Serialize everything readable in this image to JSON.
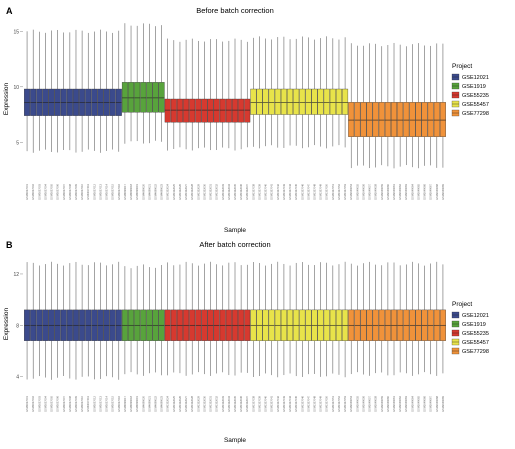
{
  "chart_data": [
    {
      "type": "box",
      "panel_label": "A",
      "title": "Before batch correction",
      "xlabel": "Sample",
      "ylabel": "Expression",
      "ylim": [
        1.6,
        16.2
      ],
      "yticks": [
        5,
        10,
        15
      ],
      "legend_title": "Project",
      "legend_position": "right",
      "series": [
        {
          "name": "GSE12021",
          "color": "#3b4a8c",
          "n": 16,
          "lower_whisker": 4.2,
          "q1": 7.4,
          "median": 8.6,
          "q3": 9.8,
          "upper_whisker": 15.0
        },
        {
          "name": "GSE1919",
          "color": "#58a33c",
          "n": 7,
          "lower_whisker": 5.0,
          "q1": 7.7,
          "median": 9.0,
          "q3": 10.4,
          "upper_whisker": 15.6
        },
        {
          "name": "GSE55235",
          "color": "#d6392f",
          "n": 14,
          "lower_whisker": 4.4,
          "q1": 6.8,
          "median": 7.9,
          "q3": 8.9,
          "upper_whisker": 14.2
        },
        {
          "name": "GSE55457",
          "color": "#e8e34a",
          "n": 16,
          "lower_whisker": 4.6,
          "q1": 7.5,
          "median": 8.6,
          "q3": 9.8,
          "upper_whisker": 14.4
        },
        {
          "name": "GSE77298",
          "color": "#f0923a",
          "n": 16,
          "lower_whisker": 2.8,
          "q1": 5.5,
          "median": 7.0,
          "q3": 8.6,
          "upper_whisker": 13.8
        }
      ],
      "sample_label_prefix": [
        "GSM3037",
        "GSM4699",
        "GSM1332",
        "GSM1337",
        "GSM2049"
      ]
    },
    {
      "type": "box",
      "panel_label": "B",
      "title": "After batch correction",
      "xlabel": "Sample",
      "ylabel": "Expression",
      "ylim": [
        2.8,
        13.4
      ],
      "yticks": [
        4,
        8,
        12
      ],
      "legend_title": "Project",
      "legend_position": "right",
      "series": [
        {
          "name": "GSE12021",
          "color": "#3b4a8c",
          "n": 16,
          "lower_whisker": 3.9,
          "q1": 6.8,
          "median": 8.0,
          "q3": 9.2,
          "upper_whisker": 12.8
        },
        {
          "name": "GSE1919",
          "color": "#58a33c",
          "n": 7,
          "lower_whisker": 4.2,
          "q1": 6.8,
          "median": 8.0,
          "q3": 9.2,
          "upper_whisker": 12.6
        },
        {
          "name": "GSE55235",
          "color": "#d6392f",
          "n": 14,
          "lower_whisker": 4.2,
          "q1": 6.8,
          "median": 8.0,
          "q3": 9.2,
          "upper_whisker": 12.8
        },
        {
          "name": "GSE55457",
          "color": "#e8e34a",
          "n": 16,
          "lower_whisker": 4.1,
          "q1": 6.8,
          "median": 8.0,
          "q3": 9.2,
          "upper_whisker": 12.8
        },
        {
          "name": "GSE77298",
          "color": "#f0923a",
          "n": 16,
          "lower_whisker": 4.2,
          "q1": 6.8,
          "median": 8.0,
          "q3": 9.2,
          "upper_whisker": 12.8
        }
      ],
      "sample_label_prefix": [
        "GSM3037",
        "GSM4699",
        "GSM1332",
        "GSM1337",
        "GSM2049"
      ]
    }
  ]
}
